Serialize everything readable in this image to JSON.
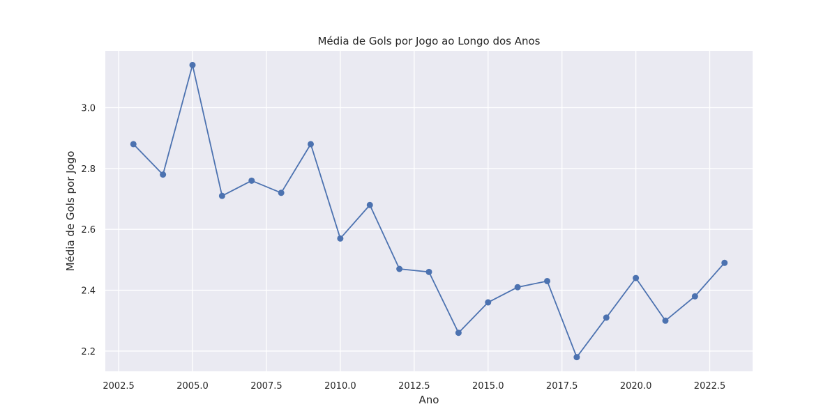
{
  "chart_data": {
    "type": "line",
    "title": "Média de Gols por Jogo ao Longo dos Anos",
    "xlabel": "Ano",
    "ylabel": "Média de Gols por Jogo",
    "xlim": [
      2002.05,
      2023.95
    ],
    "ylim": [
      2.1335,
      3.1865
    ],
    "xticks": [
      2002.5,
      2005.0,
      2007.5,
      2010.0,
      2012.5,
      2015.0,
      2017.5,
      2020.0,
      2022.5
    ],
    "xtick_labels": [
      "2002.5",
      "2005.0",
      "2007.5",
      "2010.0",
      "2012.5",
      "2015.0",
      "2017.5",
      "2020.0",
      "2022.5"
    ],
    "yticks": [
      2.2,
      2.4,
      2.6,
      2.8,
      3.0
    ],
    "ytick_labels": [
      "2.2",
      "2.4",
      "2.6",
      "2.8",
      "3.0"
    ],
    "grid": true,
    "colors": {
      "background": "#eaeaf2",
      "grid": "#ffffff",
      "line": "#4c72b0"
    },
    "series": [
      {
        "x": [
          2003,
          2004,
          2005,
          2006,
          2007,
          2008,
          2009,
          2010,
          2011,
          2012,
          2013,
          2014,
          2015,
          2016,
          2017,
          2018,
          2019,
          2020,
          2021,
          2022,
          2023
        ],
        "y": [
          2.88,
          2.78,
          3.14,
          2.71,
          2.76,
          2.72,
          2.88,
          2.57,
          2.68,
          2.47,
          2.46,
          2.26,
          2.36,
          2.41,
          2.43,
          2.18,
          2.31,
          2.44,
          2.3,
          2.38,
          2.49
        ]
      }
    ]
  }
}
